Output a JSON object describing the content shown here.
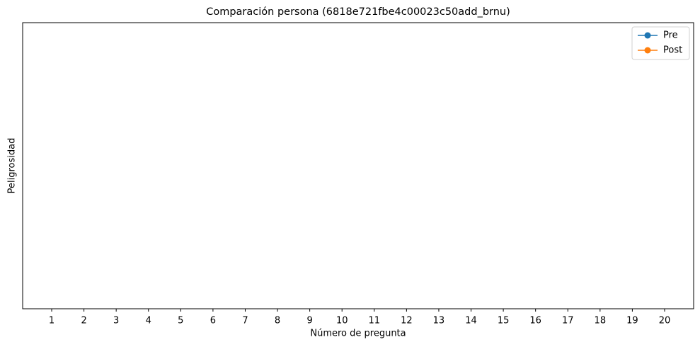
{
  "chart_data": {
    "type": "line",
    "title": "Comparación persona (6818e721fbe4c00023c50add_brnu)",
    "xlabel": "Número de pregunta",
    "ylabel": "Peligrosidad",
    "x": [
      1,
      2,
      3,
      4,
      5,
      6,
      7,
      8,
      9,
      10,
      11,
      12,
      13,
      14,
      15,
      16,
      17,
      18,
      19,
      20
    ],
    "xlim": [
      0.1,
      20.9
    ],
    "xticks": [
      1,
      2,
      3,
      4,
      5,
      6,
      7,
      8,
      9,
      10,
      11,
      12,
      13,
      14,
      15,
      16,
      17,
      18,
      19,
      20
    ],
    "series": [
      {
        "name": "Pre",
        "color": "#1f77b4",
        "values": [
          null,
          null,
          null,
          null,
          null,
          null,
          null,
          null,
          null,
          null,
          null,
          null,
          null,
          null,
          null,
          null,
          null,
          null,
          null,
          null
        ]
      },
      {
        "name": "Post",
        "color": "#ff7f0e",
        "values": [
          null,
          null,
          null,
          null,
          null,
          null,
          null,
          null,
          null,
          null,
          null,
          null,
          null,
          null,
          null,
          null,
          null,
          null,
          null,
          null
        ]
      }
    ],
    "legend": "upper right"
  }
}
